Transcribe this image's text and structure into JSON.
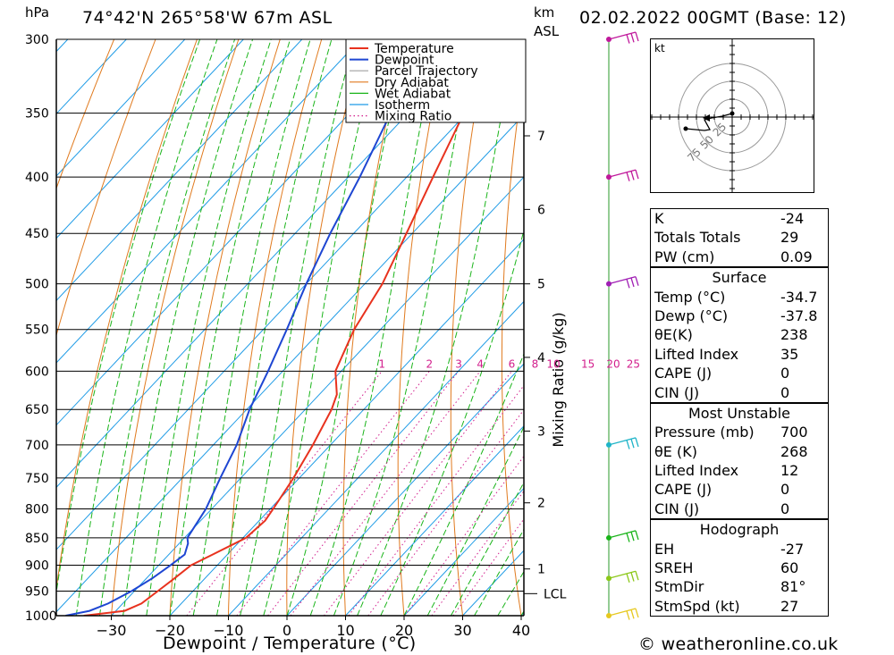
{
  "header": {
    "location": "74°42'N 265°58'W 67m ASL",
    "run": "02.02.2022 00GMT (Base: 12)",
    "unit_pressure": "hPa",
    "unit_km": "km",
    "unit_asl": "ASL"
  },
  "chart_data": {
    "type": "line",
    "xlabel": "Dewpoint / Temperature (°C)",
    "y2label": "Mixing Ratio (g/kg)",
    "pressure_levels": [
      300,
      350,
      400,
      450,
      500,
      550,
      600,
      650,
      700,
      750,
      800,
      850,
      900,
      950,
      1000
    ],
    "temperature_ticks": [
      -30,
      -20,
      -10,
      0,
      10,
      20,
      30,
      40
    ],
    "xlim": [
      -40,
      40
    ],
    "ylim": [
      1000,
      300
    ],
    "km_ticks": [
      {
        "km": "1",
        "p": 907
      },
      {
        "km": "2",
        "p": 790
      },
      {
        "km": "3",
        "p": 680
      },
      {
        "km": "4",
        "p": 583
      },
      {
        "km": "5",
        "p": 500
      },
      {
        "km": "6",
        "p": 428
      },
      {
        "km": "7",
        "p": 367
      }
    ],
    "lcl": {
      "label": "LCL",
      "p": 955
    },
    "mixing_ratio_labels": [
      "1",
      "2",
      "3",
      "4",
      "6",
      "8",
      "10",
      "15",
      "20",
      "25"
    ],
    "legend": [
      "Temperature",
      "Dewpoint",
      "Parcel Trajectory",
      "Dry Adiabat",
      "Wet Adiabat",
      "Isotherm",
      "Mixing Ratio"
    ],
    "colors": {
      "temperature": "#e8321e",
      "dewpoint": "#1e46d2",
      "parcel": "#a0a0a0",
      "dry_adiabat": "#e07a1e",
      "wet_adiabat": "#19b419",
      "isotherm": "#1e9be6",
      "mixing_ratio": "#d21e8c"
    },
    "temperature_profile": [
      {
        "p": 1000,
        "t": -34.7
      },
      {
        "p": 990,
        "t": -28.5
      },
      {
        "p": 975,
        "t": -26.8
      },
      {
        "p": 950,
        "t": -26.0
      },
      {
        "p": 925,
        "t": -25.2
      },
      {
        "p": 900,
        "t": -24.5
      },
      {
        "p": 880,
        "t": -22.5
      },
      {
        "p": 860,
        "t": -20.5
      },
      {
        "p": 850,
        "t": -19.5
      },
      {
        "p": 820,
        "t": -19.0
      },
      {
        "p": 800,
        "t": -19.5
      },
      {
        "p": 750,
        "t": -21.0
      },
      {
        "p": 700,
        "t": -23.0
      },
      {
        "p": 650,
        "t": -25.5
      },
      {
        "p": 630,
        "t": -27.0
      },
      {
        "p": 600,
        "t": -31.0
      },
      {
        "p": 550,
        "t": -34.5
      },
      {
        "p": 500,
        "t": -37.0
      },
      {
        "p": 450,
        "t": -41.0
      },
      {
        "p": 400,
        "t": -45.5
      },
      {
        "p": 350,
        "t": -50.5
      },
      {
        "p": 330,
        "t": -52.0
      },
      {
        "p": 320,
        "t": -51.0
      },
      {
        "p": 300,
        "t": -51.5
      }
    ],
    "dewpoint_profile": [
      {
        "p": 1000,
        "t": -37.8
      },
      {
        "p": 990,
        "t": -34.5
      },
      {
        "p": 975,
        "t": -32.5
      },
      {
        "p": 950,
        "t": -30.5
      },
      {
        "p": 925,
        "t": -29.0
      },
      {
        "p": 900,
        "t": -28.0
      },
      {
        "p": 880,
        "t": -27.3
      },
      {
        "p": 860,
        "t": -28.5
      },
      {
        "p": 850,
        "t": -29.5
      },
      {
        "p": 800,
        "t": -31.0
      },
      {
        "p": 750,
        "t": -33.5
      },
      {
        "p": 700,
        "t": -36.0
      },
      {
        "p": 650,
        "t": -39.5
      },
      {
        "p": 600,
        "t": -42.5
      },
      {
        "p": 550,
        "t": -46.0
      },
      {
        "p": 500,
        "t": -50.0
      },
      {
        "p": 450,
        "t": -54.0
      },
      {
        "p": 400,
        "t": -58.0
      },
      {
        "p": 350,
        "t": -63.0
      },
      {
        "p": 330,
        "t": -64.5
      },
      {
        "p": 310,
        "t": -63.5
      },
      {
        "p": 300,
        "t": -63.5
      }
    ],
    "winds": [
      {
        "p": 300,
        "color": "#c0189b"
      },
      {
        "p": 400,
        "color": "#c0189b"
      },
      {
        "p": 500,
        "color": "#a01eb4"
      },
      {
        "p": 700,
        "color": "#1eb4c8"
      },
      {
        "p": 850,
        "color": "#19b419"
      },
      {
        "p": 925,
        "color": "#8cc819"
      },
      {
        "p": 1000,
        "color": "#e6c81e"
      }
    ]
  },
  "hodograph": {
    "unit": "kt",
    "rings": [
      "25",
      "50",
      "75"
    ]
  },
  "indices": {
    "general": [
      {
        "label": "K",
        "value": "-24"
      },
      {
        "label": "Totals Totals",
        "value": "29"
      },
      {
        "label": "PW (cm)",
        "value": "0.09"
      }
    ],
    "surface": {
      "title": "Surface",
      "rows": [
        {
          "label": "Temp (°C)",
          "value": "-34.7"
        },
        {
          "label": "Dewp (°C)",
          "value": "-37.8"
        },
        {
          "label": "θE(K)",
          "value": "238"
        },
        {
          "label": "Lifted Index",
          "value": "35"
        },
        {
          "label": "CAPE (J)",
          "value": "0"
        },
        {
          "label": "CIN (J)",
          "value": "0"
        }
      ]
    },
    "most_unstable": {
      "title": "Most Unstable",
      "rows": [
        {
          "label": "Pressure (mb)",
          "value": "700"
        },
        {
          "label": "θE (K)",
          "value": "268"
        },
        {
          "label": "Lifted Index",
          "value": "12"
        },
        {
          "label": "CAPE (J)",
          "value": "0"
        },
        {
          "label": "CIN (J)",
          "value": "0"
        }
      ]
    },
    "hodograph": {
      "title": "Hodograph",
      "rows": [
        {
          "label": "EH",
          "value": "-27"
        },
        {
          "label": "SREH",
          "value": "60"
        },
        {
          "label": "StmDir",
          "value": "81°"
        },
        {
          "label": "StmSpd (kt)",
          "value": "27"
        }
      ]
    }
  },
  "footer": "© weatheronline.co.uk"
}
